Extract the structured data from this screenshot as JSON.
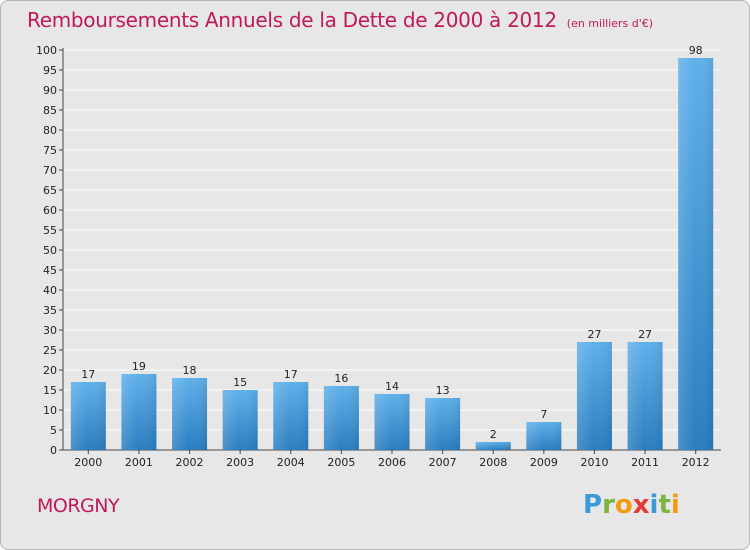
{
  "header": {
    "title": "Remboursements Annuels de la Dette de 2000 à 2012",
    "subtitle": "(en milliers d'€)"
  },
  "footer": {
    "commune": "MORGNY",
    "logo_letters": [
      {
        "char": "P",
        "color": "#3a9bd9"
      },
      {
        "char": "r",
        "color": "#7cb342"
      },
      {
        "char": "o",
        "color": "#f39c12"
      },
      {
        "char": "x",
        "color": "#e53935"
      },
      {
        "char": "i",
        "color": "#3a9bd9"
      },
      {
        "char": "t",
        "color": "#7cb342"
      },
      {
        "char": "i",
        "color": "#f39c12"
      }
    ]
  },
  "colors": {
    "accent": "#c2185b",
    "bar_top": "#5fb0ea",
    "bar_bottom": "#2a7dc0",
    "grid": "#ffffff",
    "plot_bg": "#e7e7e7"
  },
  "chart_data": {
    "type": "bar",
    "categories": [
      "2000",
      "2001",
      "2002",
      "2003",
      "2004",
      "2005",
      "2006",
      "2007",
      "2008",
      "2009",
      "2010",
      "2011",
      "2012"
    ],
    "values": [
      17,
      19,
      18,
      15,
      17,
      16,
      14,
      13,
      2,
      7,
      27,
      27,
      98
    ],
    "yticks": [
      0,
      5,
      10,
      15,
      20,
      25,
      30,
      35,
      40,
      45,
      50,
      55,
      60,
      65,
      70,
      75,
      80,
      85,
      90,
      95,
      100
    ],
    "ylim": [
      0,
      100
    ],
    "grid": true,
    "legend": "none"
  }
}
